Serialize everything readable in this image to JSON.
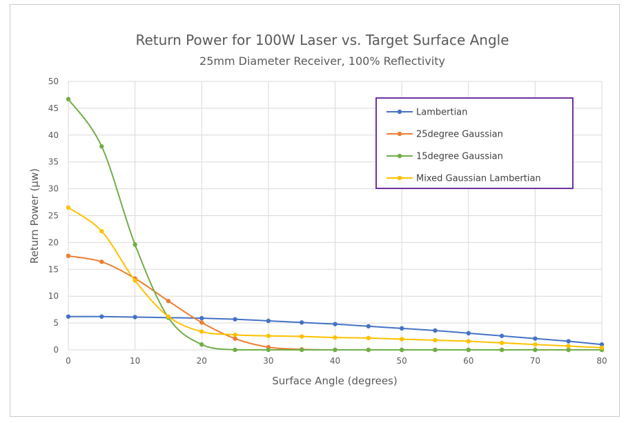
{
  "chart_data": {
    "type": "line",
    "title": "Return Power for 100W Laser vs. Target Surface Angle",
    "subtitle": "25mm Diameter Receiver, 100% Reflectivity",
    "xlabel": "Surface Angle (degrees)",
    "ylabel": "Return Power (μw)",
    "xlim": [
      0,
      80
    ],
    "ylim": [
      0,
      50
    ],
    "xticks": [
      0,
      10,
      20,
      30,
      40,
      50,
      60,
      70,
      80
    ],
    "yticks": [
      0,
      5,
      10,
      15,
      20,
      25,
      30,
      35,
      40,
      45,
      50
    ],
    "grid": true,
    "legend_position": "top-right",
    "x": [
      0,
      5,
      10,
      15,
      20,
      25,
      30,
      35,
      40,
      45,
      50,
      55,
      60,
      65,
      70,
      75,
      80
    ],
    "series": [
      {
        "name": "Lambertian",
        "color": "#4472c4",
        "values": [
          6.2,
          6.2,
          6.1,
          6.0,
          5.9,
          5.7,
          5.4,
          5.1,
          4.8,
          4.4,
          4.0,
          3.6,
          3.1,
          2.6,
          2.1,
          1.6,
          1.0
        ]
      },
      {
        "name": "25degree Gaussian",
        "color": "#ed7d31",
        "values": [
          17.5,
          16.4,
          13.3,
          9.1,
          5.1,
          2.1,
          0.5,
          0.1,
          0.0,
          0.0,
          0.0,
          0.0,
          0.0,
          0.0,
          0.0,
          0.0,
          0.0
        ]
      },
      {
        "name": "15degree Gaussian",
        "color": "#70ad47",
        "values": [
          46.7,
          37.9,
          19.6,
          6.0,
          1.0,
          0.0,
          0.0,
          0.0,
          0.0,
          0.0,
          0.0,
          0.0,
          0.0,
          0.0,
          0.0,
          0.0,
          0.0
        ]
      },
      {
        "name": "Mixed Gaussian Lambertian",
        "color": "#ffc000",
        "values": [
          26.5,
          22.1,
          12.9,
          6.2,
          3.4,
          2.8,
          2.6,
          2.5,
          2.3,
          2.2,
          2.0,
          1.8,
          1.6,
          1.3,
          1.0,
          0.7,
          0.4
        ]
      }
    ],
    "legend_border_color": "#7030a0"
  }
}
